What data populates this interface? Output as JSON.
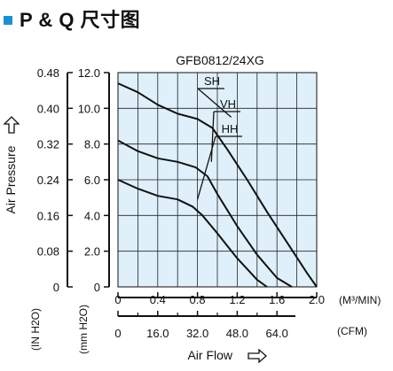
{
  "heading": {
    "title": "P & Q 尺寸图",
    "accent_color": "#1a8fd6"
  },
  "chart_data": {
    "type": "line",
    "title": "GFB0812/24XG",
    "background_color": "#dff0fb",
    "grid": true,
    "xlabel": "Air Flow",
    "x_axis_primary": {
      "unit": "(M³/MIN)",
      "range": [
        0,
        2.0
      ],
      "ticks": [
        "0",
        "0.4",
        "0.8",
        "1.2",
        "1.6",
        "2.0"
      ]
    },
    "x_axis_secondary": {
      "unit": "(CFM)",
      "ticks": [
        "0",
        "16.0",
        "32.0",
        "48.0",
        "64.0"
      ]
    },
    "ylabel": "Air Pressure",
    "y_axis_left": {
      "unit": "(IN H2O)",
      "range": [
        0,
        0.48
      ],
      "ticks": [
        "0",
        "0.08",
        "0.16",
        "0.24",
        "0.32",
        "0.40",
        "0.48"
      ]
    },
    "y_axis_right": {
      "unit": "(mm H2O)",
      "range": [
        0,
        12.0
      ],
      "ticks": [
        "0",
        "2.0",
        "4.0",
        "6.0",
        "8.0",
        "10.0",
        "12.0"
      ]
    },
    "series": [
      {
        "name": "SH",
        "x": [
          0,
          0.2,
          0.4,
          0.6,
          0.8,
          0.95,
          1.1,
          1.3,
          1.5,
          1.7,
          1.9,
          2.0
        ],
        "y": [
          11.4,
          10.9,
          10.2,
          9.7,
          9.4,
          8.9,
          7.7,
          6.0,
          4.2,
          2.5,
          0.8,
          0
        ]
      },
      {
        "name": "VH",
        "x": [
          0,
          0.2,
          0.4,
          0.6,
          0.78,
          0.9,
          1.0,
          1.2,
          1.4,
          1.6,
          1.75
        ],
        "y": [
          8.2,
          7.6,
          7.2,
          7.0,
          6.7,
          6.2,
          5.2,
          3.4,
          1.8,
          0.5,
          0
        ]
      },
      {
        "name": "HH",
        "x": [
          0,
          0.2,
          0.4,
          0.6,
          0.75,
          0.85,
          1.0,
          1.2,
          1.4,
          1.5
        ],
        "y": [
          6.0,
          5.5,
          5.1,
          4.9,
          4.5,
          4.0,
          3.0,
          1.6,
          0.4,
          0
        ]
      }
    ]
  }
}
